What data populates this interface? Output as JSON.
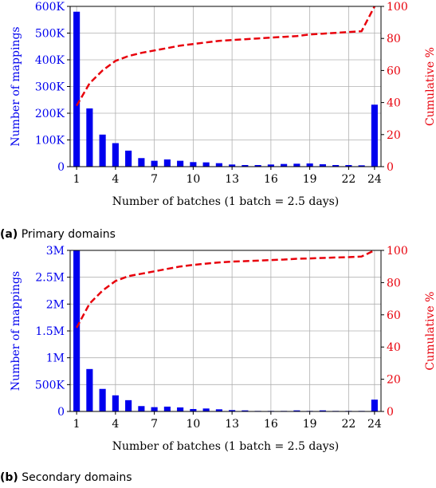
{
  "captions": [
    {
      "tag": "(a)",
      "text": "Primary domains"
    },
    {
      "tag": "(b)",
      "text": "Secondary domains"
    }
  ],
  "chart_data": [
    {
      "type": "bar",
      "x": [
        1,
        2,
        3,
        4,
        5,
        6,
        7,
        8,
        9,
        10,
        11,
        12,
        13,
        14,
        15,
        16,
        17,
        18,
        19,
        20,
        21,
        22,
        23,
        24
      ],
      "x_ticks": [
        "1",
        "4",
        "7",
        "10",
        "13",
        "16",
        "19",
        "22",
        "24"
      ],
      "xlabel": "Number of batches (1 batch = 2.5 days)",
      "ylabel": "Number of mappings",
      "ylabel2": "Cumulative %",
      "ylim": [
        0,
        600000
      ],
      "y_ticks": [
        0,
        100000,
        200000,
        300000,
        400000,
        500000,
        600000
      ],
      "y_tick_labels": [
        "0",
        "100K",
        "200K",
        "300K",
        "400K",
        "500K",
        "600K"
      ],
      "y2lim": [
        0,
        100
      ],
      "y2_ticks": [
        "0",
        "20",
        "40",
        "60",
        "80",
        "100"
      ],
      "grid": true,
      "series": [
        {
          "kind": "bar",
          "values": [
            580000,
            218000,
            120000,
            88000,
            60000,
            32000,
            22000,
            27000,
            22000,
            17000,
            16000,
            13000,
            8000,
            6000,
            6000,
            8000,
            10000,
            11000,
            12000,
            9000,
            6000,
            6000,
            5000,
            232000
          ]
        },
        {
          "kind": "line",
          "style": "dashed",
          "axis": "right",
          "values": [
            38,
            52,
            60,
            66,
            69,
            71,
            72.5,
            74,
            75.5,
            76.5,
            77.5,
            78.5,
            79,
            79.5,
            80,
            80.5,
            81,
            81.5,
            82.5,
            83,
            83.5,
            84,
            84.5,
            100
          ]
        }
      ],
      "colors": {
        "bar": "#0000ee",
        "line": "#e8000b",
        "left_axis": "#0000ee",
        "right_axis": "#e8000b"
      }
    },
    {
      "type": "bar",
      "x": [
        1,
        2,
        3,
        4,
        5,
        6,
        7,
        8,
        9,
        10,
        11,
        12,
        13,
        14,
        15,
        16,
        17,
        18,
        19,
        20,
        21,
        22,
        23,
        24
      ],
      "x_ticks": [
        "1",
        "4",
        "7",
        "10",
        "13",
        "16",
        "19",
        "22",
        "24"
      ],
      "xlabel": "Number of batches (1 batch = 2.5 days)",
      "ylabel": "Number of mappings",
      "ylabel2": "Cumulative %",
      "ylim": [
        0,
        3000000
      ],
      "y_ticks": [
        0,
        500000,
        1000000,
        1500000,
        2000000,
        2500000,
        3000000
      ],
      "y_tick_labels": [
        "0",
        "500K",
        "1M",
        "1.5M",
        "2M",
        "2.5M",
        "3M"
      ],
      "y2lim": [
        0,
        100
      ],
      "y2_ticks": [
        "0",
        "20",
        "40",
        "60",
        "80",
        "100"
      ],
      "grid": true,
      "series": [
        {
          "kind": "bar",
          "values": [
            3000000,
            790000,
            420000,
            300000,
            210000,
            100000,
            80000,
            90000,
            75000,
            45000,
            55000,
            40000,
            25000,
            20000,
            10000,
            10000,
            10000,
            20000,
            10000,
            20000,
            10000,
            10000,
            10000,
            220000
          ]
        },
        {
          "kind": "line",
          "style": "dashed",
          "axis": "right",
          "values": [
            52,
            67,
            75,
            81,
            84,
            85.5,
            87,
            88.5,
            90,
            91,
            91.8,
            92.5,
            93,
            93.3,
            93.6,
            94,
            94.3,
            94.8,
            95,
            95.3,
            95.6,
            95.8,
            96.2,
            100
          ]
        }
      ],
      "colors": {
        "bar": "#0000ee",
        "line": "#e8000b",
        "left_axis": "#0000ee",
        "right_axis": "#e8000b"
      }
    }
  ]
}
